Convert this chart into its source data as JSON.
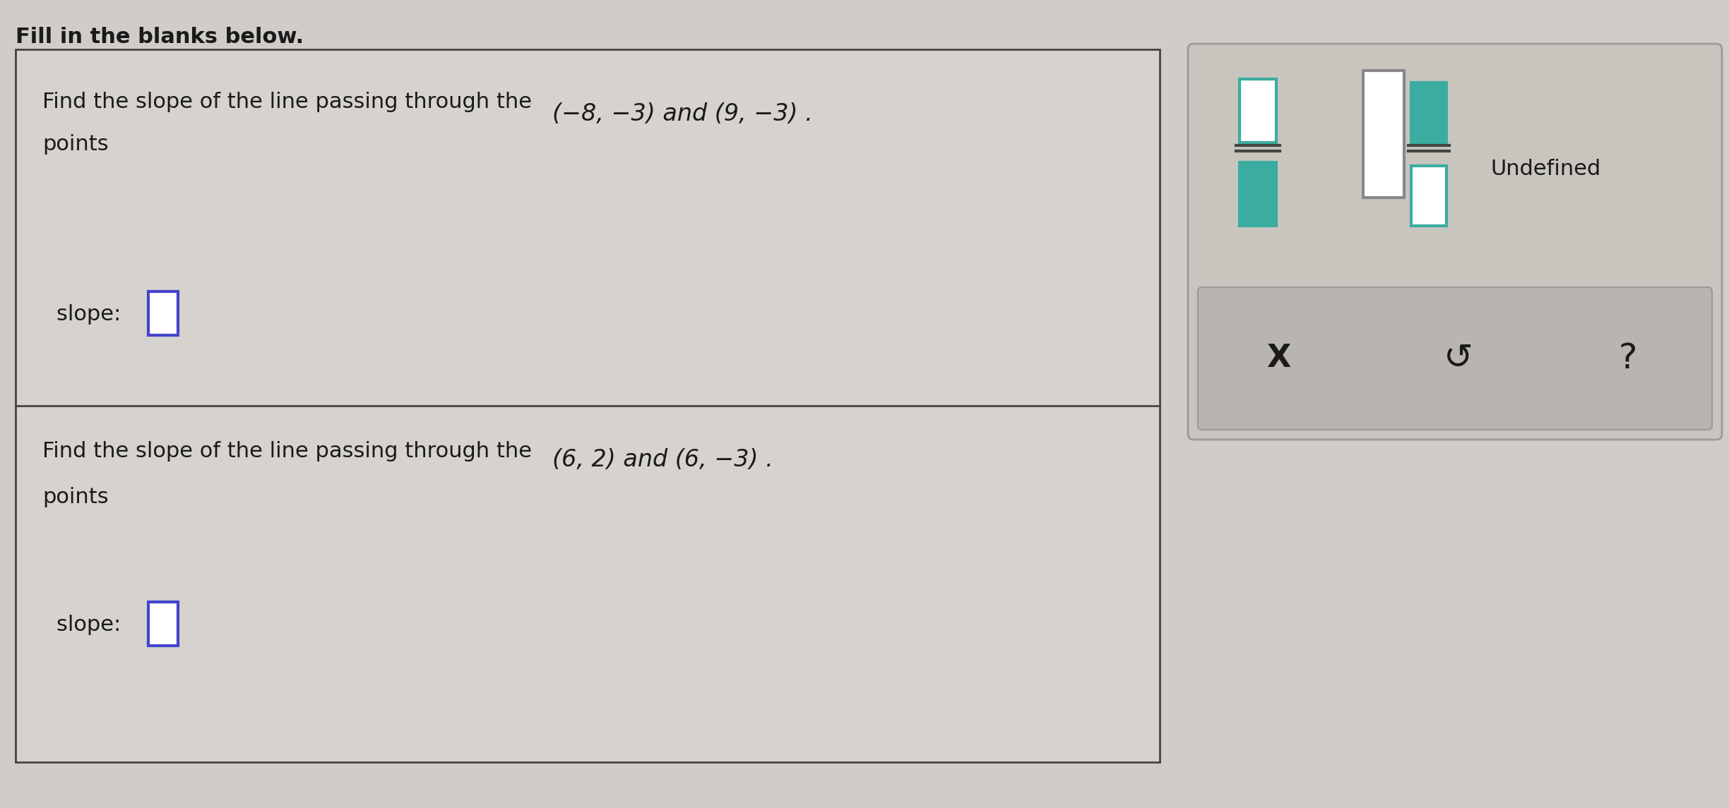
{
  "bg_color": "#d0cdc8",
  "title_text": "Fill in the blanks below.",
  "row1_text1": "Find the slope of the line passing through the",
  "row1_text2": "points",
  "row1_eq": "(−8, −3) and (9, −3) .",
  "row1_slope_label": "slope: ",
  "row2_text1": "Find the slope of the line passing through the",
  "row2_text2": "points",
  "row2_eq": "(6, 2) and (6, −3) .",
  "row2_slope_label": "slope: ",
  "undefined_text": "Undefined",
  "btn_x_text": "X",
  "btn_undo_text": "↺",
  "btn_q_text": "?",
  "teal_color": "#3aada0",
  "gray_color": "#888888",
  "dark_gray": "#555555",
  "text_color": "#1a1a1a",
  "input_box_color": "#4444cc",
  "box_bg": "#d6d3ce",
  "panel_bg": "#c8c5bf",
  "btn_row_bg": "#b8b5b0",
  "white": "#ffffff"
}
